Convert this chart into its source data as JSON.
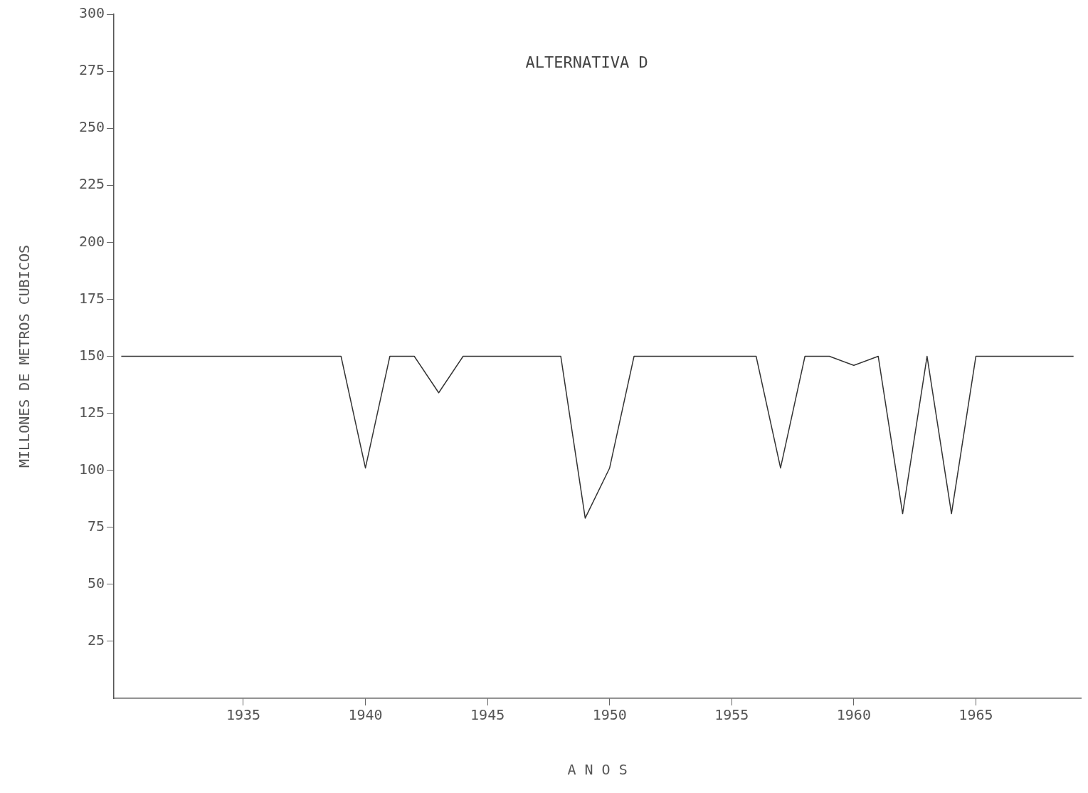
{
  "chart_data": {
    "type": "line",
    "title": "ALTERNATIVA D",
    "xlabel": "A N O S",
    "ylabel": "MILLONES DE METROS CUBICOS",
    "x": [
      1930,
      1939,
      1940,
      1941,
      1942,
      1943,
      1944,
      1948,
      1949,
      1950,
      1951,
      1956,
      1957,
      1958,
      1959,
      1960,
      1961,
      1962,
      1963,
      1964,
      1965,
      1969
    ],
    "series": [
      {
        "color": "#333333",
        "values": [
          150,
          150,
          101,
          150,
          150,
          134,
          150,
          150,
          79,
          101,
          150,
          150,
          101,
          150,
          150,
          146,
          150,
          81,
          150,
          81,
          150,
          150
        ]
      }
    ],
    "xlim": [
      1929.7,
      1969.3
    ],
    "xticks": [
      1935,
      1940,
      1945,
      1950,
      1955,
      1960,
      1965
    ],
    "ylim": [
      0,
      300
    ],
    "yticks": [
      25,
      50,
      75,
      100,
      125,
      150,
      175,
      200,
      225,
      250,
      275,
      300
    ],
    "grid": false,
    "legend": false,
    "marker": "none",
    "line_style": "solid"
  }
}
